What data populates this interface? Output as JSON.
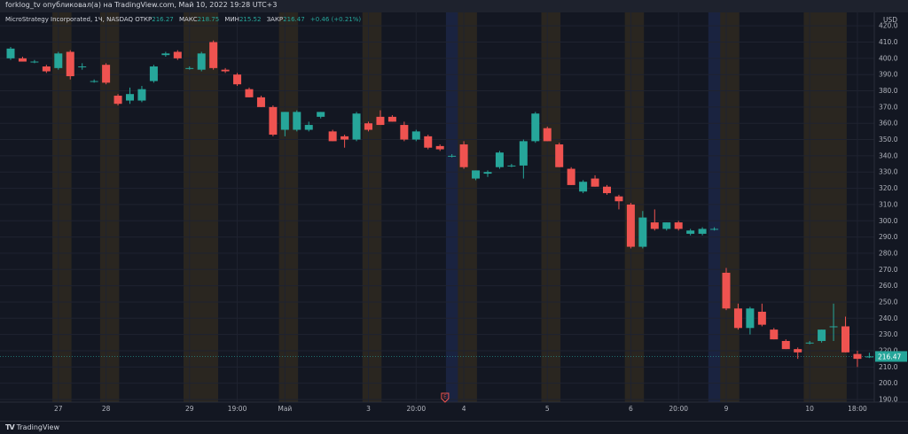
{
  "header": {
    "publish_line": "forklog_tv опубликовал(а) на TradingView.com, Май 10, 2022 19:28 UTC+3"
  },
  "legend": {
    "symbol": "MicroStrategy Incorporated, 1Ч, NASDAQ",
    "open_label": "ОТКР",
    "open_value": "216.27",
    "high_label": "МАКС",
    "high_value": "218.75",
    "low_label": "МИН",
    "low_value": "215.52",
    "close_label": "ЗАКР",
    "close_value": "216.47",
    "change": "+0.46 (+0.21%)"
  },
  "footer": {
    "logo_text": "TradingView"
  },
  "colors": {
    "background": "#131722",
    "up": "#26a69a",
    "down": "#ef5350",
    "grid": "#1f2330",
    "session_orange": "#2a2620",
    "session_blue": "#1a2340",
    "axis_text": "#b2b5be",
    "price_label_bg": "#26a69a"
  },
  "chart_data": {
    "type": "candlestick",
    "currency_label": "USD",
    "ylim": [
      190,
      425
    ],
    "y_ticks": [
      190,
      200,
      210,
      220,
      230,
      240,
      250,
      260,
      270,
      280,
      290,
      300,
      310,
      320,
      330,
      340,
      350,
      360,
      370,
      380,
      390,
      400,
      410,
      420
    ],
    "x_tick_labels": [
      {
        "label": "27",
        "index": 4
      },
      {
        "label": "28",
        "index": 8
      },
      {
        "label": "29",
        "index": 15
      },
      {
        "label": "19:00",
        "index": 19
      },
      {
        "label": "Май",
        "index": 23
      },
      {
        "label": "3",
        "index": 30
      },
      {
        "label": "20:00",
        "index": 34
      },
      {
        "label": "4",
        "index": 38
      },
      {
        "label": "5",
        "index": 45
      },
      {
        "label": "6",
        "index": 52
      },
      {
        "label": "20:00",
        "index": 56
      },
      {
        "label": "9",
        "index": 60
      },
      {
        "label": "10",
        "index": 67
      },
      {
        "label": "18:00",
        "index": 71
      }
    ],
    "last_price": 216.47,
    "earnings_marker": {
      "label": "E",
      "index": 37
    },
    "sessions": [
      {
        "type": "orange",
        "from": 4,
        "to": 4.6
      },
      {
        "type": "orange",
        "from": 8,
        "to": 8.6
      },
      {
        "type": "orange",
        "from": 15,
        "to": 16.9
      },
      {
        "type": "orange",
        "from": 23,
        "to": 23.6
      },
      {
        "type": "orange",
        "from": 30,
        "to": 30.6
      },
      {
        "type": "blue",
        "from": 37,
        "to": 37.6
      },
      {
        "type": "orange",
        "from": 38,
        "to": 38.6
      },
      {
        "type": "orange",
        "from": 45,
        "to": 45.6
      },
      {
        "type": "orange",
        "from": 52,
        "to": 52.6
      },
      {
        "type": "blue",
        "from": 59,
        "to": 59.6
      },
      {
        "type": "orange",
        "from": 60,
        "to": 60.6
      },
      {
        "type": "orange",
        "from": 67,
        "to": 69.6
      }
    ],
    "candles": [
      {
        "o": 400,
        "h": 407,
        "l": 399,
        "c": 406
      },
      {
        "o": 400,
        "h": 401,
        "l": 398,
        "c": 398
      },
      {
        "o": 398,
        "h": 399,
        "l": 397,
        "c": 398
      },
      {
        "o": 395,
        "h": 396,
        "l": 391,
        "c": 392
      },
      {
        "o": 394,
        "h": 404,
        "l": 393,
        "c": 403
      },
      {
        "o": 404,
        "h": 405,
        "l": 387,
        "c": 389
      },
      {
        "o": 395,
        "h": 397,
        "l": 393,
        "c": 395
      },
      {
        "o": 386,
        "h": 387,
        "l": 385,
        "c": 386
      },
      {
        "o": 396,
        "h": 397,
        "l": 384,
        "c": 385
      },
      {
        "o": 377,
        "h": 378,
        "l": 371,
        "c": 372
      },
      {
        "o": 374,
        "h": 382,
        "l": 372,
        "c": 378
      },
      {
        "o": 374,
        "h": 383,
        "l": 373,
        "c": 381
      },
      {
        "o": 386,
        "h": 396,
        "l": 385,
        "c": 395
      },
      {
        "o": 402,
        "h": 404,
        "l": 401,
        "c": 403
      },
      {
        "o": 404,
        "h": 405,
        "l": 399,
        "c": 400
      },
      {
        "o": 394,
        "h": 395,
        "l": 393,
        "c": 394
      },
      {
        "o": 393,
        "h": 404,
        "l": 392,
        "c": 403
      },
      {
        "o": 410,
        "h": 411,
        "l": 393,
        "c": 394
      },
      {
        "o": 393,
        "h": 394,
        "l": 391,
        "c": 392
      },
      {
        "o": 390,
        "h": 391,
        "l": 383,
        "c": 384
      },
      {
        "o": 381,
        "h": 382,
        "l": 376,
        "c": 376
      },
      {
        "o": 376,
        "h": 377,
        "l": 370,
        "c": 370
      },
      {
        "o": 370,
        "h": 371,
        "l": 352,
        "c": 353
      },
      {
        "o": 356,
        "h": 367,
        "l": 352,
        "c": 367
      },
      {
        "o": 356,
        "h": 368,
        "l": 355,
        "c": 367
      },
      {
        "o": 356,
        "h": 361,
        "l": 355,
        "c": 359
      },
      {
        "o": 364,
        "h": 367,
        "l": 363,
        "c": 367
      },
      {
        "o": 355,
        "h": 356,
        "l": 349,
        "c": 349
      },
      {
        "o": 352,
        "h": 353,
        "l": 345,
        "c": 350
      },
      {
        "o": 350,
        "h": 367,
        "l": 349,
        "c": 366
      },
      {
        "o": 360,
        "h": 361,
        "l": 355,
        "c": 356
      },
      {
        "o": 364,
        "h": 368,
        "l": 359,
        "c": 359
      },
      {
        "o": 364,
        "h": 365,
        "l": 361,
        "c": 361
      },
      {
        "o": 359,
        "h": 361,
        "l": 349,
        "c": 350
      },
      {
        "o": 350,
        "h": 356,
        "l": 349,
        "c": 355
      },
      {
        "o": 352,
        "h": 353,
        "l": 344,
        "c": 345
      },
      {
        "o": 346,
        "h": 347,
        "l": 343,
        "c": 344
      },
      {
        "o": 340,
        "h": 341,
        "l": 339,
        "c": 340
      },
      {
        "o": 347,
        "h": 349,
        "l": 332,
        "c": 333
      },
      {
        "o": 326,
        "h": 331,
        "l": 325,
        "c": 331
      },
      {
        "o": 329,
        "h": 331,
        "l": 327,
        "c": 330
      },
      {
        "o": 333,
        "h": 343,
        "l": 332,
        "c": 342
      },
      {
        "o": 334,
        "h": 335,
        "l": 333,
        "c": 334
      },
      {
        "o": 334,
        "h": 350,
        "l": 326,
        "c": 349
      },
      {
        "o": 349,
        "h": 367,
        "l": 348,
        "c": 366
      },
      {
        "o": 357,
        "h": 358,
        "l": 349,
        "c": 349
      },
      {
        "o": 347,
        "h": 348,
        "l": 333,
        "c": 333
      },
      {
        "o": 332,
        "h": 333,
        "l": 322,
        "c": 322
      },
      {
        "o": 318,
        "h": 325,
        "l": 317,
        "c": 324
      },
      {
        "o": 326,
        "h": 328,
        "l": 321,
        "c": 321
      },
      {
        "o": 321,
        "h": 322,
        "l": 316,
        "c": 317
      },
      {
        "o": 315,
        "h": 316,
        "l": 307,
        "c": 312
      },
      {
        "o": 310,
        "h": 311,
        "l": 283,
        "c": 284
      },
      {
        "o": 284,
        "h": 306,
        "l": 283,
        "c": 302
      },
      {
        "o": 299,
        "h": 307,
        "l": 294,
        "c": 295
      },
      {
        "o": 295,
        "h": 299,
        "l": 294,
        "c": 299
      },
      {
        "o": 299,
        "h": 300,
        "l": 294,
        "c": 295
      },
      {
        "o": 292,
        "h": 295,
        "l": 291,
        "c": 294
      },
      {
        "o": 292,
        "h": 296,
        "l": 291,
        "c": 295
      },
      {
        "o": 295,
        "h": 296,
        "l": 294,
        "c": 295
      },
      {
        "o": 268,
        "h": 271,
        "l": 245,
        "c": 246
      },
      {
        "o": 246,
        "h": 249,
        "l": 233,
        "c": 234
      },
      {
        "o": 234,
        "h": 247,
        "l": 230,
        "c": 246
      },
      {
        "o": 244,
        "h": 249,
        "l": 235,
        "c": 236
      },
      {
        "o": 233,
        "h": 234,
        "l": 227,
        "c": 227
      },
      {
        "o": 226,
        "h": 227,
        "l": 221,
        "c": 221
      },
      {
        "o": 221,
        "h": 222,
        "l": 215,
        "c": 219
      },
      {
        "o": 225,
        "h": 226,
        "l": 224,
        "c": 225
      },
      {
        "o": 226,
        "h": 233,
        "l": 225,
        "c": 233
      },
      {
        "o": 235,
        "h": 249,
        "l": 226,
        "c": 235
      },
      {
        "o": 235,
        "h": 241,
        "l": 219,
        "c": 219
      },
      {
        "o": 218,
        "h": 220,
        "l": 210,
        "c": 215
      },
      {
        "o": 216.27,
        "h": 218.75,
        "l": 215.52,
        "c": 216.47
      }
    ]
  }
}
